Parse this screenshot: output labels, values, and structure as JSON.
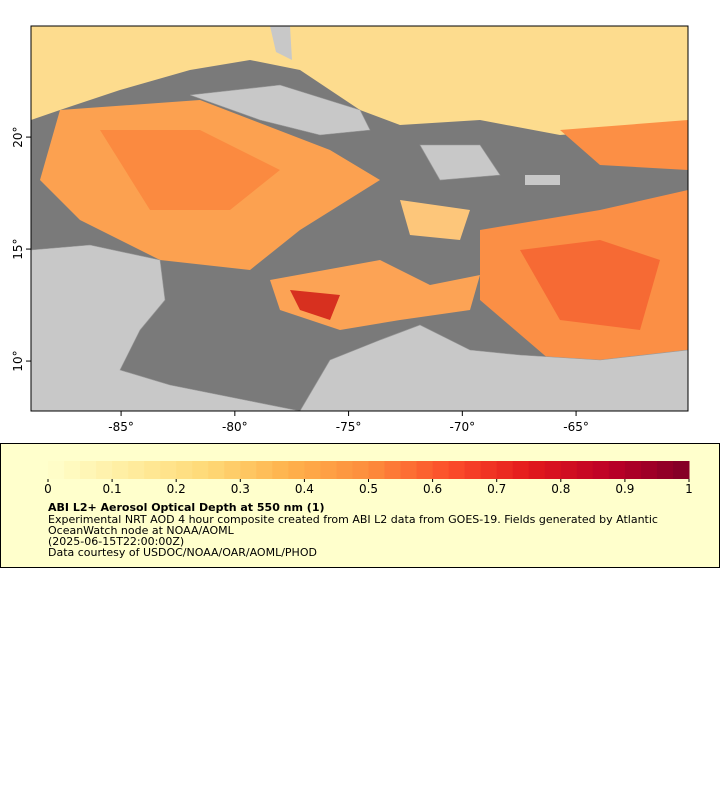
{
  "map": {
    "xlim": [
      -88.96,
      -60.08
    ],
    "ylim": [
      7.77,
      24.96
    ],
    "xticks": [
      {
        "value": -85,
        "label": "-85°"
      },
      {
        "value": -80,
        "label": "-80°"
      },
      {
        "value": -75,
        "label": "-75°"
      },
      {
        "value": -70,
        "label": "-70°"
      },
      {
        "value": -65,
        "label": "-65°"
      }
    ],
    "yticks": [
      {
        "value": 10,
        "label": "10°"
      },
      {
        "value": 15,
        "label": "15°"
      },
      {
        "value": 20,
        "label": "20°"
      }
    ]
  },
  "colorbar": {
    "title": "ABI L2+ Aerosol Optical Depth at 550 nm (1)",
    "description": "Experimental NRT AOD 4 hour composite created from ABI L2 data from GOES-19. Fields generated by Atlantic OceanWatch node at NOAA/AOML",
    "time": "(2025-06-15T22:00:00Z)",
    "credit": "Data courtesy of USDOC/NOAA/OAR/AOML/PHOD",
    "range": [
      0,
      1
    ],
    "ticks": [
      0,
      0.1,
      0.2,
      0.3,
      0.4,
      0.5,
      0.6,
      0.7,
      0.8,
      0.9,
      1
    ],
    "colors": [
      "#ffffcc",
      "#ffeda0",
      "#fed976",
      "#feb24c",
      "#fd8d3c",
      "#fc4e2a",
      "#e31a1c",
      "#bd0026",
      "#800026"
    ]
  }
}
